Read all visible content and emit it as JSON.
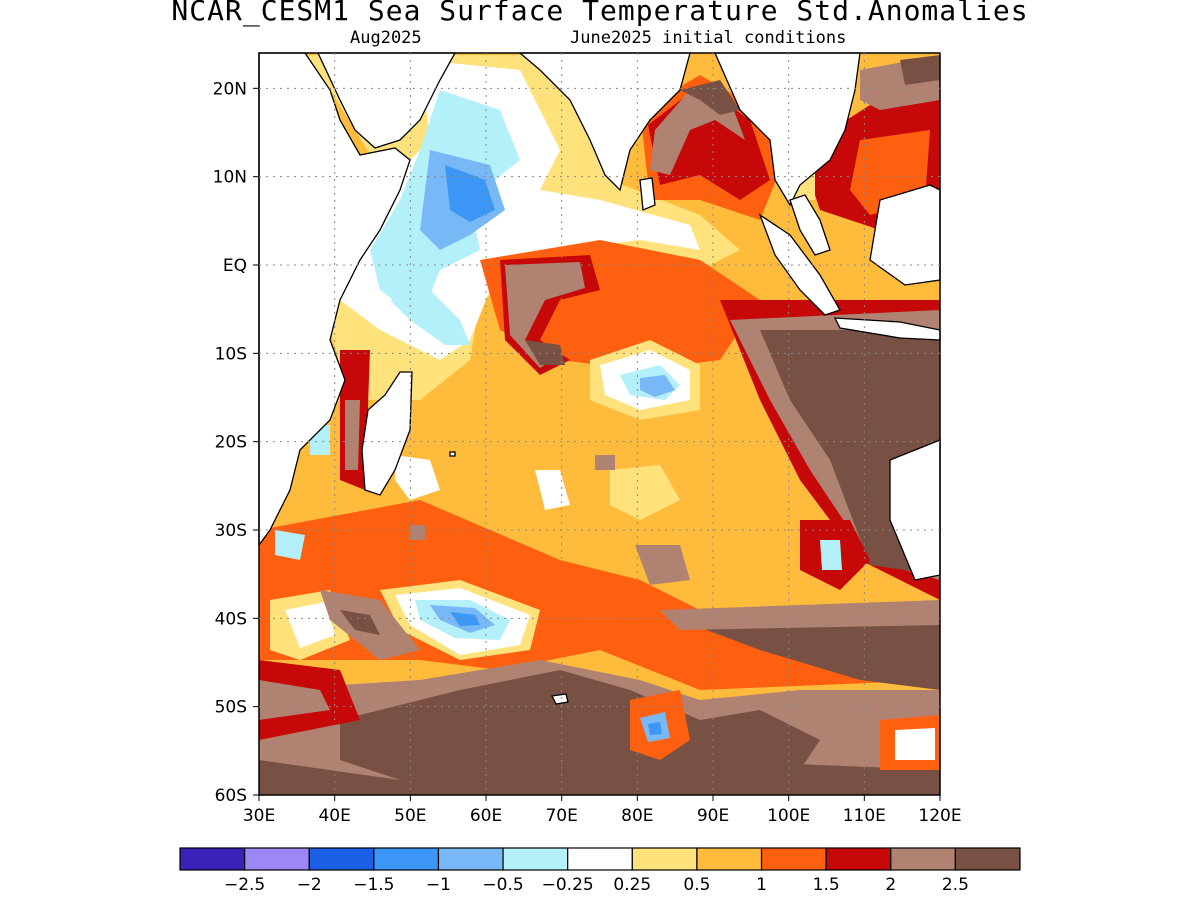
{
  "title": "NCAR_CESM1 Sea Surface Temperature Std.Anomalies",
  "subtitle_left": "Aug2025",
  "subtitle_right": "June2025 initial conditions",
  "axes": {
    "lat_labels": [
      "20N",
      "10N",
      "EQ",
      "10S",
      "20S",
      "30S",
      "40S",
      "50S",
      "60S"
    ],
    "lon_labels": [
      "30E",
      "40E",
      "50E",
      "60E",
      "70E",
      "80E",
      "90E",
      "100E",
      "110E",
      "120E"
    ],
    "lon_range": [
      30,
      120
    ],
    "lat_range": [
      -60,
      24
    ],
    "grid": "dotted"
  },
  "colorbar": {
    "colors": [
      "#3a22b8",
      "#9d86f6",
      "#1a5fe6",
      "#3c96f5",
      "#78b8f7",
      "#b4f0fa",
      "#ffffff",
      "#ffe27c",
      "#ffbc3c",
      "#ff6010",
      "#c60808",
      "#b08272",
      "#785044"
    ],
    "labels": [
      "−2.5",
      "−2",
      "−1.5",
      "−1",
      "−0.5",
      "−0.25",
      "0.25",
      "0.5",
      "1",
      "1.5",
      "2",
      "2.5"
    ]
  },
  "map_colors": {
    "ocean_base": "#ffbc3c",
    "land": "#ffffff",
    "coastline": "#000000"
  }
}
